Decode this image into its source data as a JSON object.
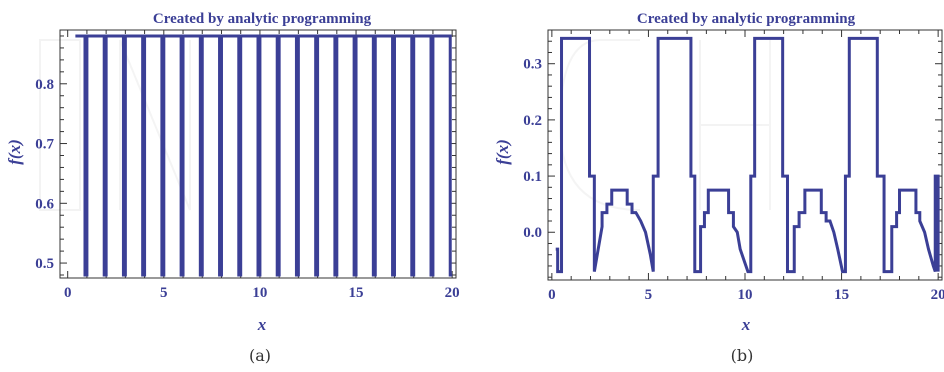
{
  "chart_data": [
    {
      "type": "line",
      "title": "Created by analytic programming",
      "xlabel": "x",
      "ylabel": "f(x)",
      "caption": "(a)",
      "xlim": [
        -0.4,
        20.2
      ],
      "ylim": [
        0.475,
        0.89
      ],
      "xticks": [
        0,
        5,
        10,
        15,
        20
      ],
      "yticks": [
        0.5,
        0.6,
        0.7,
        0.8
      ],
      "yticklabels": [
        "0.5",
        "0.6",
        "0.7",
        "0.8"
      ],
      "series": [
        {
          "x": [
            0.4,
            0.9,
            0.9,
            1.0,
            1.0,
            1.9,
            1.9,
            2.0,
            2.0,
            2.9,
            2.9,
            3.0,
            3.0,
            3.9,
            3.9,
            4.0,
            4.0,
            4.9,
            4.9,
            5.0,
            5.0,
            5.9,
            5.9,
            6.0,
            6.0,
            6.9,
            6.9,
            7.0,
            7.0,
            7.9,
            7.9,
            8.0,
            8.0,
            8.9,
            8.9,
            9.0,
            9.0,
            9.9,
            9.9,
            10.0,
            10.0,
            10.9,
            10.9,
            11.0,
            11.0,
            11.9,
            11.9,
            12.0,
            12.0,
            12.9,
            12.9,
            13.0,
            13.0,
            13.9,
            13.9,
            14.0,
            14.0,
            14.9,
            14.9,
            15.0,
            15.0,
            15.9,
            15.9,
            16.0,
            16.0,
            16.9,
            16.9,
            17.0,
            17.0,
            17.9,
            17.9,
            18.0,
            18.0,
            18.9,
            18.9,
            19.0,
            19.0,
            19.9,
            19.9,
            20.0
          ],
          "y": [
            0.88,
            0.88,
            0.48,
            0.48,
            0.88,
            0.88,
            0.48,
            0.48,
            0.88,
            0.88,
            0.48,
            0.48,
            0.88,
            0.88,
            0.48,
            0.48,
            0.88,
            0.88,
            0.48,
            0.48,
            0.88,
            0.88,
            0.48,
            0.48,
            0.88,
            0.88,
            0.48,
            0.48,
            0.88,
            0.88,
            0.48,
            0.48,
            0.88,
            0.88,
            0.48,
            0.48,
            0.88,
            0.88,
            0.48,
            0.48,
            0.88,
            0.88,
            0.48,
            0.48,
            0.88,
            0.88,
            0.48,
            0.48,
            0.88,
            0.88,
            0.48,
            0.48,
            0.88,
            0.88,
            0.48,
            0.48,
            0.88,
            0.88,
            0.48,
            0.48,
            0.88,
            0.88,
            0.48,
            0.48,
            0.88,
            0.88,
            0.48,
            0.48,
            0.88,
            0.88,
            0.48,
            0.48,
            0.88,
            0.88,
            0.48,
            0.48,
            0.88,
            0.88,
            0.48,
            0.48
          ]
        }
      ]
    },
    {
      "type": "line",
      "title": "Created by analytic programming",
      "xlabel": "x",
      "ylabel": "f(x)",
      "caption": "(b)",
      "xlim": [
        -0.2,
        20.2
      ],
      "ylim": [
        -0.085,
        0.36
      ],
      "xticks": [
        0,
        5,
        10,
        15,
        20
      ],
      "yticks": [
        0.0,
        0.1,
        0.2,
        0.3
      ],
      "yticklabels": [
        "0.0",
        "0.1",
        "0.2",
        "0.3"
      ],
      "series": [
        {
          "x": [
            0.2,
            0.3,
            0.3,
            0.5,
            0.5,
            0.5,
            0.5,
            1.95,
            1.95,
            2.2,
            2.2,
            2.2,
            2.6,
            2.6,
            2.85,
            2.85,
            3.1,
            3.1,
            3.9,
            3.9,
            4.15,
            4.15,
            4.35,
            4.6,
            4.85,
            5.1,
            5.25,
            5.25,
            5.5,
            5.5,
            6.0,
            6.0,
            7.2,
            7.2,
            7.4,
            7.4,
            7.7,
            7.7,
            7.9,
            7.9,
            8.1,
            8.1,
            9.15,
            9.15,
            9.4,
            9.4,
            9.6,
            9.75,
            9.95,
            10.15,
            10.3,
            10.3,
            10.5,
            10.5,
            10.65,
            10.65,
            11.95,
            11.95,
            12.2,
            12.2,
            12.2,
            12.55,
            12.55,
            12.8,
            12.8,
            13.1,
            13.1,
            13.95,
            13.95,
            14.2,
            14.2,
            14.4,
            14.6,
            14.8,
            15.05,
            15.2,
            15.2,
            15.4,
            15.4,
            15.9,
            15.9,
            16.85,
            16.85,
            17.05,
            17.05,
            17.2,
            17.2,
            17.6,
            17.6,
            17.85,
            17.85,
            18.0,
            18.0,
            18.85,
            18.85,
            19.05,
            19.05,
            19.3,
            19.5,
            19.75,
            19.85,
            19.85,
            20.0,
            20.0
          ],
          "y": [
            -0.03,
            -0.03,
            -0.07,
            -0.07,
            0.1,
            0.1,
            0.345,
            0.345,
            0.1,
            0.1,
            -0.07,
            -0.07,
            0.01,
            0.035,
            0.035,
            0.05,
            0.05,
            0.075,
            0.075,
            0.05,
            0.05,
            0.035,
            0.035,
            0.02,
            0.0,
            -0.04,
            -0.07,
            0.1,
            0.1,
            0.345,
            0.345,
            0.345,
            0.345,
            0.1,
            0.1,
            -0.07,
            -0.07,
            0.01,
            0.01,
            0.035,
            0.035,
            0.075,
            0.075,
            0.035,
            0.035,
            0.01,
            0.0,
            -0.03,
            -0.05,
            -0.07,
            -0.07,
            0.1,
            0.1,
            0.345,
            0.345,
            0.345,
            0.345,
            0.1,
            0.1,
            0.1,
            -0.07,
            -0.07,
            0.01,
            0.01,
            0.035,
            0.035,
            0.075,
            0.075,
            0.035,
            0.035,
            0.02,
            0.02,
            0.0,
            -0.03,
            -0.07,
            -0.07,
            0.1,
            0.1,
            0.345,
            0.345,
            0.345,
            0.345,
            0.1,
            0.1,
            0.1,
            0.1,
            -0.07,
            -0.07,
            0.01,
            0.01,
            0.035,
            0.035,
            0.075,
            0.075,
            0.035,
            0.035,
            0.02,
            0.0,
            -0.03,
            -0.06,
            -0.07,
            0.1,
            0.1,
            -0.07
          ]
        }
      ]
    }
  ]
}
